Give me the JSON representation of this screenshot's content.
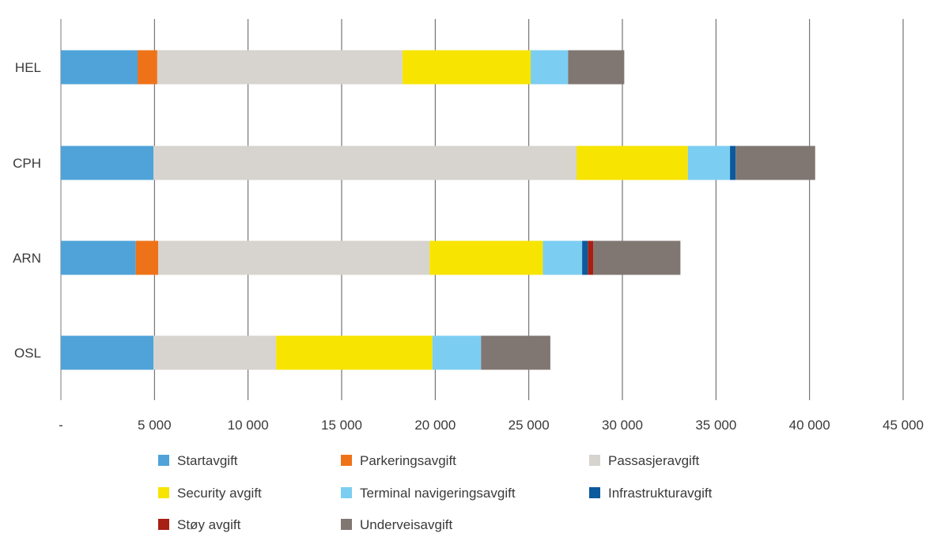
{
  "chart_data": {
    "type": "bar",
    "orientation": "horizontal",
    "stacked": true,
    "title": "",
    "xlabel": "",
    "ylabel": "",
    "xlim": [
      0,
      45000
    ],
    "grid": true,
    "legend_position": "bottom",
    "x_ticks": [
      {
        "value": 0,
        "label": "-"
      },
      {
        "value": 5000,
        "label": "5 000"
      },
      {
        "value": 10000,
        "label": "10 000"
      },
      {
        "value": 15000,
        "label": "15 000"
      },
      {
        "value": 20000,
        "label": "20 000"
      },
      {
        "value": 25000,
        "label": "25 000"
      },
      {
        "value": 30000,
        "label": "30 000"
      },
      {
        "value": 35000,
        "label": "35 000"
      },
      {
        "value": 40000,
        "label": "40 000"
      },
      {
        "value": 45000,
        "label": "45 000"
      }
    ],
    "categories": [
      "HEL",
      "CPH",
      "ARN",
      "OSL"
    ],
    "series": [
      {
        "name": "Startavgift",
        "color": "#4fa3d8",
        "values": [
          4100,
          4950,
          4000,
          4950
        ]
      },
      {
        "name": "Parkeringsavgift",
        "color": "#ee7318",
        "values": [
          1050,
          0,
          1200,
          0
        ]
      },
      {
        "name": "Passasjeravgift",
        "color": "#d7d3ce",
        "values": [
          13100,
          22600,
          14500,
          6550
        ]
      },
      {
        "name": "Security avgift",
        "color": "#f7e400",
        "values": [
          6850,
          5950,
          6050,
          8350
        ]
      },
      {
        "name": "Terminal navigeringsavgift",
        "color": "#7ccdf2",
        "values": [
          2000,
          2250,
          2100,
          2600
        ]
      },
      {
        "name": "Infrastrukturavgift",
        "color": "#0a5a9c",
        "values": [
          0,
          300,
          300,
          0
        ]
      },
      {
        "name": "Støy avgift",
        "color": "#a81f14",
        "values": [
          0,
          0,
          300,
          0
        ]
      },
      {
        "name": "Underveisavgift",
        "color": "#807672",
        "values": [
          3000,
          4250,
          4650,
          3700
        ]
      }
    ]
  }
}
